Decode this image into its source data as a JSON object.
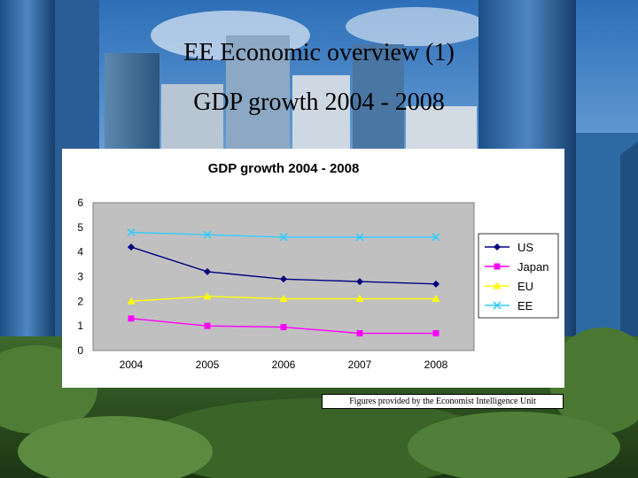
{
  "slide": {
    "title": "EE Economic overview (1)",
    "subtitle": "GDP growth 2004 - 2008",
    "caption": "Figures provided by the Economist Intelligence Unit"
  },
  "chart_data": {
    "type": "line",
    "title": "GDP growth 2004 - 2008",
    "xlabel": "",
    "ylabel": "",
    "categories": [
      "2004",
      "2005",
      "2006",
      "2007",
      "2008"
    ],
    "yticks": [
      "0",
      "1",
      "2",
      "3",
      "4",
      "5",
      "6"
    ],
    "ylim": [
      0,
      6
    ],
    "grid": false,
    "legend_position": "right",
    "series": [
      {
        "name": "US",
        "values": [
          4.2,
          3.2,
          2.9,
          2.8,
          2.7
        ],
        "color": "#000080",
        "marker": "diamond"
      },
      {
        "name": "Japan",
        "values": [
          1.3,
          1.0,
          0.95,
          0.7,
          0.7
        ],
        "color": "#ff00ff",
        "marker": "square"
      },
      {
        "name": "EU",
        "values": [
          2.0,
          2.2,
          2.1,
          2.1,
          2.1
        ],
        "color": "#ffff00",
        "marker": "triangle"
      },
      {
        "name": "EE",
        "values": [
          4.8,
          4.7,
          4.6,
          4.6,
          4.6
        ],
        "color": "#33ccff",
        "marker": "x"
      }
    ]
  }
}
